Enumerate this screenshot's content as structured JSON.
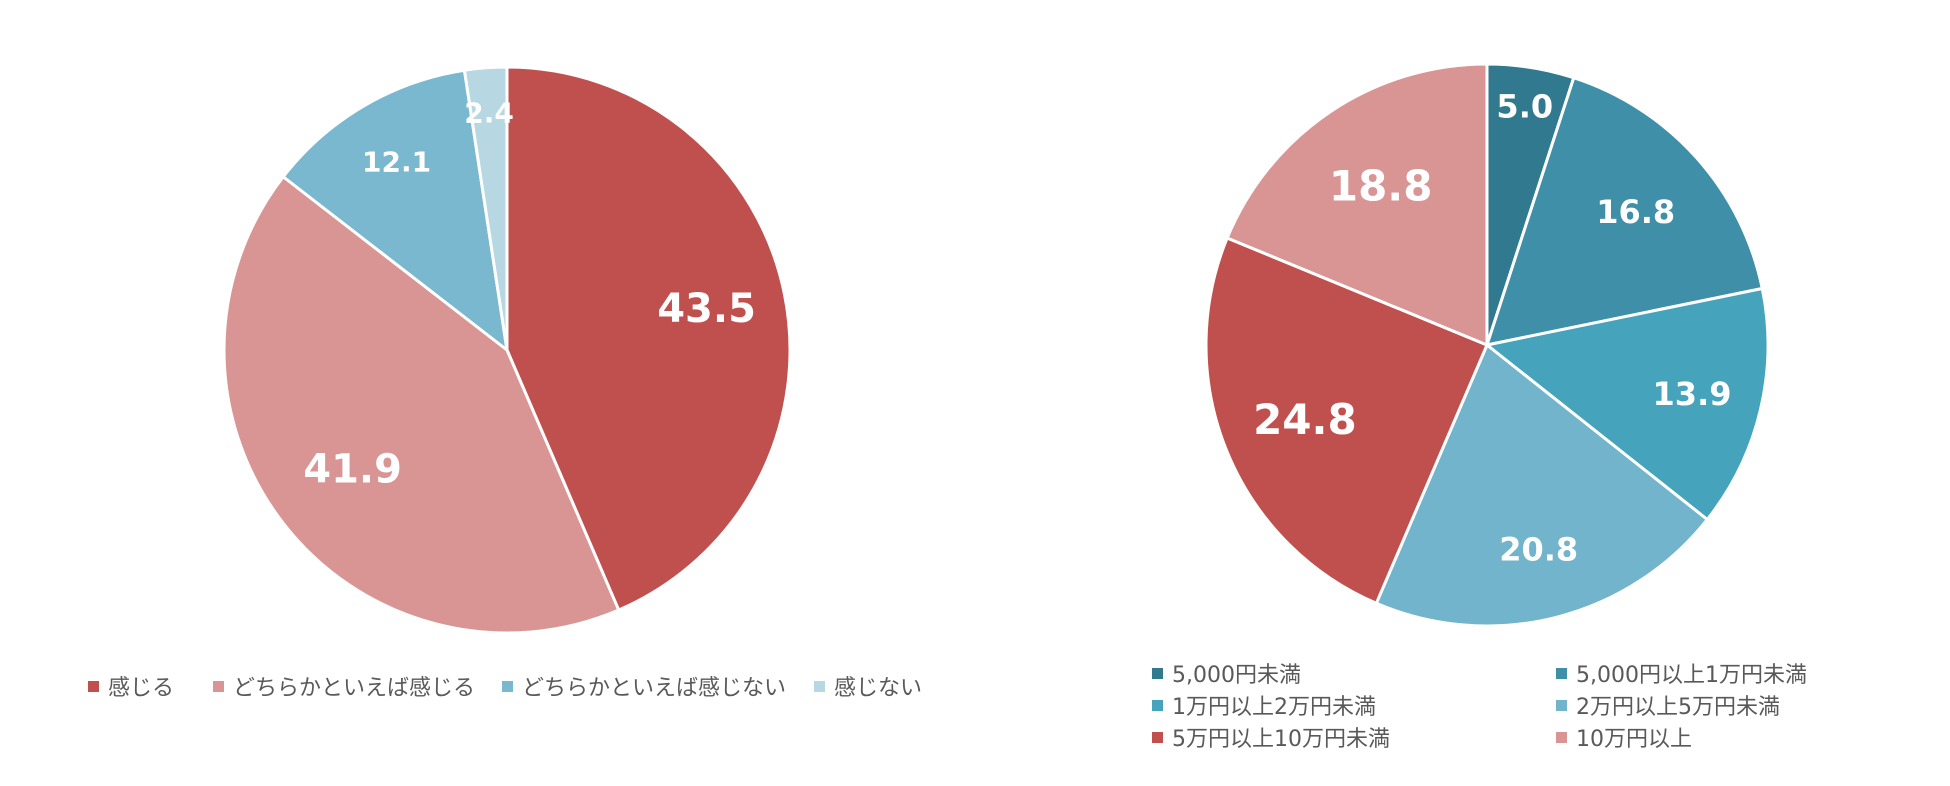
{
  "chart_data": [
    {
      "type": "pie",
      "unit": "%",
      "categories": [
        "感じる",
        "どちらかといえば感じる",
        "どちらかといえば感じない",
        "感じない"
      ],
      "values": [
        43.5,
        41.9,
        12.1,
        2.4
      ],
      "labels": [
        "43.5",
        "41.9",
        "12.1",
        "2.4"
      ],
      "colors": [
        "#c0504d",
        "#d99594",
        "#7ab8cf",
        "#b7d7e3"
      ],
      "legend": "bottom"
    },
    {
      "type": "pie",
      "unit": "%",
      "categories": [
        "5,000円未満",
        "5,000円以上1万円未満",
        "1万円以上2万円未満",
        "2万円以上5万円未満",
        "5万円以上10万円未満",
        "10万円以上"
      ],
      "values": [
        5.0,
        16.8,
        13.9,
        20.8,
        24.8,
        18.8
      ],
      "labels": [
        "5.0",
        "16.8",
        "13.9",
        "20.8",
        "24.8",
        "18.8"
      ],
      "colors": [
        "#31798e",
        "#3f8fa8",
        "#46a3bc",
        "#71b4cc",
        "#c0504d",
        "#d99594"
      ],
      "legend": "bottom"
    }
  ]
}
